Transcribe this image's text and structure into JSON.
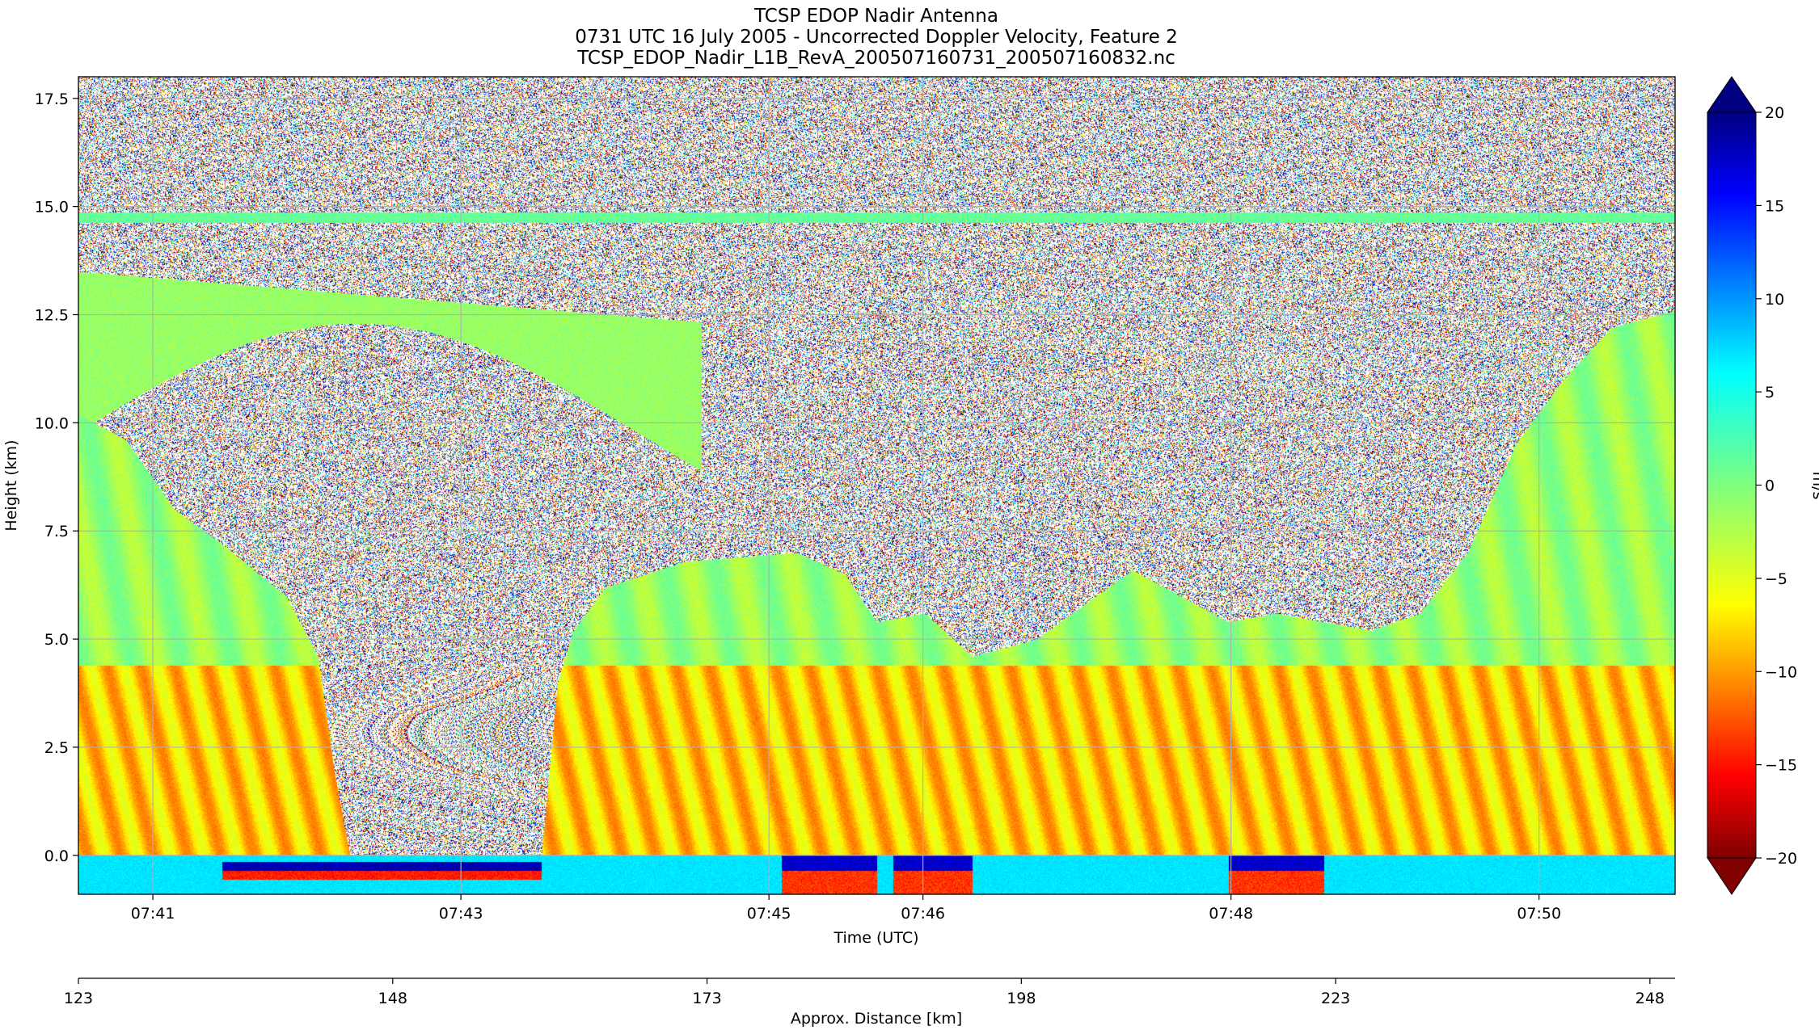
{
  "chart_data": {
    "type": "heatmap",
    "title": [
      "TCSP EDOP Nadir Antenna",
      "0731 UTC 16 July 2005 - Uncorrected Doppler Velocity, Feature 2",
      "TCSP_EDOP_Nadir_L1B_RevA_200507160731_200507160832.nc"
    ],
    "xlabel": "Time (UTC)",
    "ylabel": "Height (km)",
    "x2label": "Approx. Distance [km]",
    "colorbar_label": "m/s",
    "colormap": "jet",
    "clim": [
      -20,
      20
    ],
    "colorbar_ticks": [
      -20,
      -15,
      -10,
      -5,
      0,
      5,
      10,
      15,
      20
    ],
    "ylim": [
      -0.9,
      18.0
    ],
    "yticks": [
      0.0,
      2.5,
      5.0,
      7.5,
      10.0,
      12.5,
      15.0,
      17.5
    ],
    "ytick_labels": [
      "0.0",
      "2.5",
      "5.0",
      "7.5",
      "10.0",
      "12.5",
      "15.0",
      "17.5"
    ],
    "time_range": [
      "07:40:31",
      "07:50:53"
    ],
    "xticks": [
      "07:41",
      "07:43",
      "07:45",
      "07:46",
      "07:48",
      "07:50"
    ],
    "xticks_seconds": [
      60,
      180,
      300,
      360,
      480,
      600
    ],
    "distance_range_km": [
      123,
      250
    ],
    "x2ticks": [
      123,
      148,
      173,
      198,
      223,
      248
    ],
    "grid": true,
    "features": {
      "melting_layer_height_km": 4.4,
      "tropopause_noise_band_height_km": 14.8,
      "surface_height_km": 0.0
    }
  }
}
